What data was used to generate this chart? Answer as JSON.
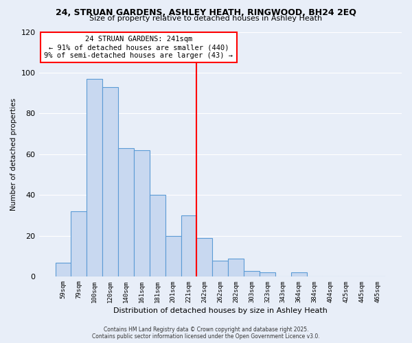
{
  "title1": "24, STRUAN GARDENS, ASHLEY HEATH, RINGWOOD, BH24 2EQ",
  "title2": "Size of property relative to detached houses in Ashley Heath",
  "xlabel": "Distribution of detached houses by size in Ashley Heath",
  "ylabel": "Number of detached properties",
  "bar_color": "#c8d8f0",
  "bar_edge_color": "#5b9bd5",
  "background_color": "#e8eef8",
  "grid_color": "#ffffff",
  "categories": [
    "59sqm",
    "79sqm",
    "100sqm",
    "120sqm",
    "140sqm",
    "161sqm",
    "181sqm",
    "201sqm",
    "221sqm",
    "242sqm",
    "262sqm",
    "282sqm",
    "303sqm",
    "323sqm",
    "343sqm",
    "364sqm",
    "384sqm",
    "404sqm",
    "425sqm",
    "445sqm",
    "465sqm"
  ],
  "values": [
    7,
    32,
    97,
    93,
    63,
    62,
    40,
    20,
    30,
    19,
    8,
    9,
    3,
    2,
    0,
    2,
    0,
    0,
    0,
    0,
    0
  ],
  "ylim": [
    0,
    120
  ],
  "yticks": [
    0,
    20,
    40,
    60,
    80,
    100,
    120
  ],
  "red_line_x": 8.5,
  "annotation_title": "24 STRUAN GARDENS: 241sqm",
  "annotation_line1": "← 91% of detached houses are smaller (440)",
  "annotation_line2": "9% of semi-detached houses are larger (43) →",
  "footer1": "Contains HM Land Registry data © Crown copyright and database right 2025.",
  "footer2": "Contains public sector information licensed under the Open Government Licence v3.0."
}
